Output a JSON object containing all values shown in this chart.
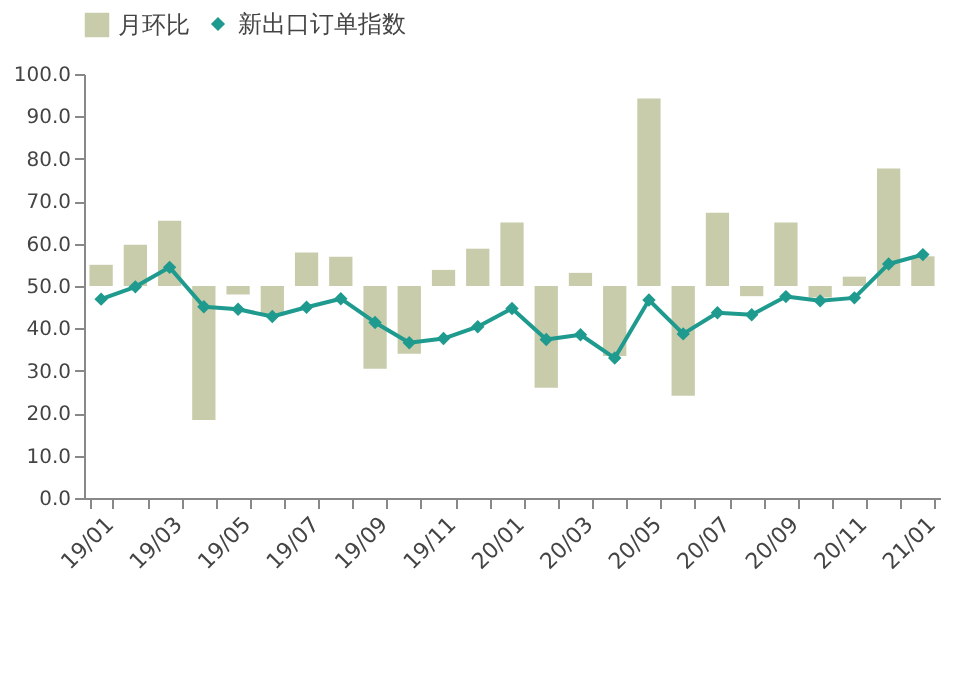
{
  "chart_data": {
    "type": "bar",
    "categories": [
      "19/01",
      null,
      "19/03",
      null,
      "19/05",
      null,
      "19/07",
      null,
      "19/09",
      null,
      "19/11",
      null,
      "20/01",
      null,
      "20/03",
      null,
      "20/05",
      null,
      "20/07",
      null,
      "20/09",
      null,
      "20/11",
      null,
      "21/01"
    ],
    "series": [
      {
        "name": "月环比",
        "color": "#c8ccaa",
        "base": [
          50,
          50,
          50,
          50,
          50,
          50,
          50,
          50,
          50,
          50,
          50,
          50,
          50,
          50,
          50,
          50,
          50,
          50,
          50,
          50,
          50,
          50,
          50,
          50,
          50
        ],
        "values": [
          5.0,
          9.7,
          15.4,
          -31.6,
          -2.0,
          -7.0,
          7.9,
          6.9,
          -19.5,
          -16.0,
          3.8,
          8.8,
          15.0,
          -24.0,
          3.1,
          -16.5,
          44.2,
          -25.9,
          17.3,
          -2.4,
          15.0,
          -2.7,
          2.2,
          27.7,
          7.0
        ]
      },
      {
        "name": "新出口订单指数",
        "type": "line",
        "color": "#1f9a8e",
        "marker": "diamond",
        "values": [
          46.9,
          49.8,
          54.4,
          45.1,
          44.5,
          42.8,
          45.0,
          47.0,
          41.4,
          36.6,
          37.6,
          40.4,
          44.7,
          37.4,
          38.5,
          33.0,
          46.7,
          38.7,
          43.7,
          43.2,
          47.5,
          46.5,
          47.2,
          55.2,
          57.4
        ]
      }
    ],
    "ylim": [
      0,
      100
    ],
    "yticks": [
      {
        "value": 0,
        "label": "0.0"
      },
      {
        "value": 10,
        "label": "10.0"
      },
      {
        "value": 20,
        "label": "20.0"
      },
      {
        "value": 30,
        "label": "30.0"
      },
      {
        "value": 40,
        "label": "40.0"
      },
      {
        "value": 50,
        "label": "50.0"
      },
      {
        "value": 60,
        "label": "60.0"
      },
      {
        "value": 70,
        "label": "70.0"
      },
      {
        "value": 80,
        "label": "80.0"
      },
      {
        "value": 90,
        "label": "90.0"
      },
      {
        "value": 100,
        "label": "100.0"
      }
    ],
    "grid": false,
    "legend": "top"
  }
}
